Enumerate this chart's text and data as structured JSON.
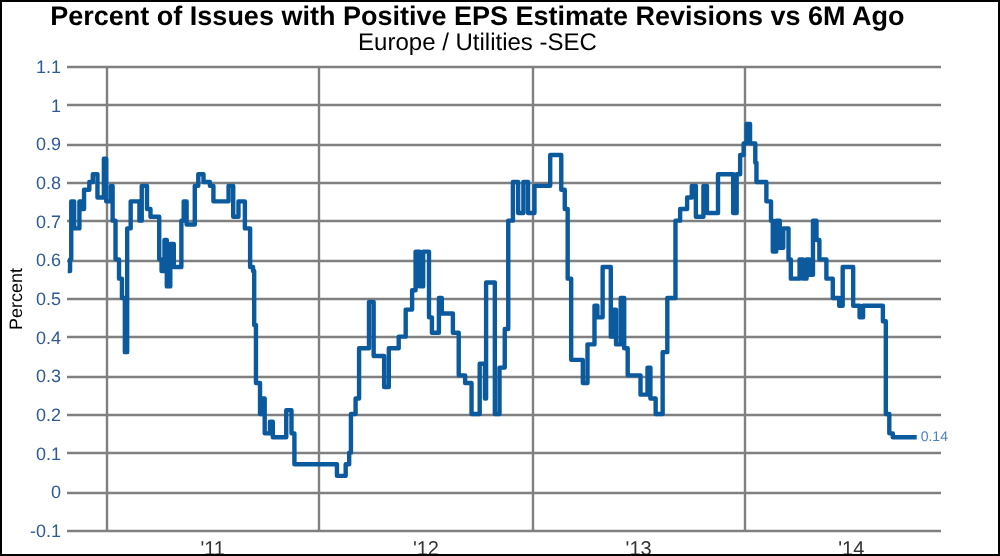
{
  "chart_data": {
    "type": "step",
    "title": "Percent of Issues with Positive EPS Estimate Revisions vs 6M Ago",
    "subtitle": "Europe / Utilities -SEC",
    "ylabel": "Percent",
    "color": "#0b5a9e",
    "grid": true,
    "x": [
      "2010-10-28",
      "2010-11-01",
      "2010-11-03",
      "2010-11-08",
      "2010-11-14",
      "2010-11-17",
      "2010-11-22",
      "2010-11-25",
      "2010-12-04",
      "2010-12-10",
      "2010-12-18",
      "2010-12-29",
      "2011-01-02",
      "2011-01-10",
      "2011-01-13",
      "2011-01-18",
      "2011-01-21",
      "2011-01-24",
      "2011-01-29",
      "2011-02-03",
      "2011-02-07",
      "2011-02-13",
      "2011-02-24",
      "2011-02-28",
      "2011-03-04",
      "2011-03-13",
      "2011-03-19",
      "2011-03-27",
      "2011-04-03",
      "2011-04-07",
      "2011-04-12",
      "2011-04-16",
      "2011-04-22",
      "2011-04-28",
      "2011-05-11",
      "2011-05-15",
      "2011-05-20",
      "2011-05-30",
      "2011-06-03",
      "2011-06-09",
      "2011-06-18",
      "2011-06-29",
      "2011-07-05",
      "2011-07-22",
      "2011-07-31",
      "2011-08-08",
      "2011-08-17",
      "2011-08-25",
      "2011-08-28",
      "2011-09-06",
      "2011-09-11",
      "2011-09-13",
      "2011-09-16",
      "2011-09-23",
      "2011-09-27",
      "2011-10-01",
      "2011-10-10",
      "2011-10-15",
      "2011-11-01",
      "2011-11-07",
      "2011-11-16",
      "2011-11-21",
      "2012-01-31",
      "2012-02-02",
      "2012-02-14",
      "2012-02-17",
      "2012-02-23",
      "2012-02-26",
      "2012-03-05",
      "2012-03-11",
      "2012-03-28",
      "2012-04-05",
      "2012-04-23",
      "2012-05-01",
      "2012-05-18",
      "2012-05-30",
      "2012-06-10",
      "2012-06-16",
      "2012-06-23",
      "2012-06-29",
      "2012-07-09",
      "2012-07-14",
      "2012-07-26",
      "2012-07-31",
      "2012-08-15",
      "2012-08-19",
      "2012-08-29",
      "2012-09-09",
      "2012-09-20",
      "2012-10-04",
      "2012-10-13",
      "2012-10-15",
      "2012-10-30",
      "2012-11-07",
      "2012-11-16",
      "2012-11-22",
      "2012-11-30",
      "2012-12-09",
      "2012-12-18",
      "2012-12-26",
      "2013-01-06",
      "2013-01-29",
      "2013-02-02",
      "2013-02-13",
      "2013-02-21",
      "2013-02-27",
      "2013-03-04",
      "2013-03-10",
      "2013-03-23",
      "2013-03-30",
      "2013-04-07",
      "2013-04-19",
      "2013-04-24",
      "2013-05-03",
      "2013-05-12",
      "2013-05-17",
      "2013-05-20",
      "2013-05-26",
      "2013-06-03",
      "2013-06-09",
      "2013-06-15",
      "2013-07-07",
      "2013-07-19",
      "2013-07-24",
      "2013-08-02",
      "2013-08-10",
      "2013-08-14",
      "2013-08-22",
      "2013-09-05",
      "2013-09-13",
      "2013-09-25",
      "2013-10-03",
      "2013-10-10",
      "2013-10-18",
      "2013-10-23",
      "2013-10-29",
      "2013-11-13",
      "2013-11-17",
      "2013-12-02",
      "2013-12-13",
      "2013-12-19",
      "2013-12-25",
      "2013-12-31",
      "2014-01-05",
      "2014-01-11",
      "2014-01-20",
      "2014-01-22",
      "2014-02-03",
      "2014-02-08",
      "2014-02-16",
      "2014-02-19",
      "2014-02-25",
      "2014-03-03",
      "2014-03-09",
      "2014-03-18",
      "2014-03-22",
      "2014-04-01",
      "2014-04-06",
      "2014-04-12",
      "2014-04-18",
      "2014-04-23",
      "2014-04-29",
      "2014-05-05",
      "2014-05-10",
      "2014-05-22",
      "2014-06-02",
      "2014-06-13",
      "2014-06-19",
      "2014-06-30",
      "2014-07-07",
      "2014-07-18",
      "2014-07-24",
      "2014-08-21",
      "2014-08-27",
      "2014-09-01",
      "2014-09-07",
      "2014-09-13",
      "2014-10-24"
    ],
    "values": [
      0.57,
      0.6,
      0.75,
      0.68,
      0.68,
      0.75,
      0.73,
      0.78,
      0.8,
      0.82,
      0.76,
      0.86,
      0.75,
      0.79,
      0.7,
      0.6,
      0.6,
      0.55,
      0.5,
      0.36,
      0.68,
      0.75,
      0.75,
      0.7,
      0.79,
      0.73,
      0.71,
      0.71,
      0.6,
      0.57,
      0.65,
      0.53,
      0.64,
      0.58,
      0.7,
      0.75,
      0.69,
      0.69,
      0.79,
      0.82,
      0.8,
      0.79,
      0.75,
      0.75,
      0.79,
      0.71,
      0.75,
      0.75,
      0.68,
      0.58,
      0.57,
      0.43,
      0.28,
      0.2,
      0.24,
      0.15,
      0.18,
      0.14,
      0.14,
      0.21,
      0.15,
      0.07,
      0.07,
      0.04,
      0.04,
      0.07,
      0.1,
      0.2,
      0.24,
      0.37,
      0.49,
      0.35,
      0.27,
      0.37,
      0.4,
      0.47,
      0.52,
      0.62,
      0.53,
      0.62,
      0.45,
      0.41,
      0.5,
      0.46,
      0.46,
      0.41,
      0.3,
      0.28,
      0.2,
      0.33,
      0.24,
      0.54,
      0.2,
      0.32,
      0.42,
      0.7,
      0.8,
      0.72,
      0.8,
      0.72,
      0.79,
      0.79,
      0.87,
      0.87,
      0.78,
      0.73,
      0.55,
      0.34,
      0.34,
      0.28,
      0.38,
      0.48,
      0.45,
      0.58,
      0.58,
      0.4,
      0.47,
      0.38,
      0.5,
      0.37,
      0.3,
      0.25,
      0.32,
      0.24,
      0.2,
      0.2,
      0.36,
      0.5,
      0.7,
      0.73,
      0.76,
      0.79,
      0.71,
      0.71,
      0.79,
      0.72,
      0.72,
      0.82,
      0.82,
      0.72,
      0.82,
      0.87,
      0.9,
      0.95,
      0.9,
      0.85,
      0.8,
      0.8,
      0.75,
      0.7,
      0.62,
      0.7,
      0.63,
      0.68,
      0.6,
      0.55,
      0.55,
      0.6,
      0.55,
      0.6,
      0.56,
      0.7,
      0.65,
      0.6,
      0.55,
      0.5,
      0.48,
      0.58,
      0.58,
      0.48,
      0.45,
      0.48,
      0.48,
      0.44,
      0.2,
      0.15,
      0.14,
      0.14
    ],
    "xlim": [
      "2010-10-25",
      "2014-12-03"
    ],
    "xticks": [
      {
        "value": "2011-01-01",
        "label": null
      },
      {
        "value": "2011-07-02",
        "label": "'11"
      },
      {
        "value": "2012-01-01",
        "label": null
      },
      {
        "value": "2012-07-02",
        "label": "'12"
      },
      {
        "value": "2013-01-01",
        "label": null
      },
      {
        "value": "2013-07-02",
        "label": "'13"
      },
      {
        "value": "2014-01-01",
        "label": null
      },
      {
        "value": "2014-07-02",
        "label": "'14"
      }
    ],
    "ylim": [
      -0.1,
      1.1
    ],
    "yticks": [
      -0.1,
      0,
      0.1,
      0.2,
      0.3,
      0.4,
      0.5,
      0.6,
      0.7,
      0.8,
      0.9,
      1,
      1.1
    ],
    "annotations": [
      {
        "text": "0.14",
        "x": "2014-10-24",
        "y": 0.14
      }
    ]
  }
}
